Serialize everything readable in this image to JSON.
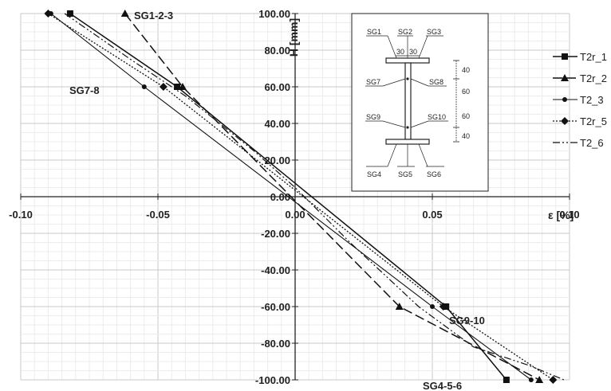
{
  "chart_data": {
    "type": "line",
    "xlabel": "ε [%]",
    "ylabel": "H [mm]",
    "xlim": [
      -0.1,
      0.1
    ],
    "ylim": [
      -100,
      100
    ],
    "x_ticks": [
      "-0.10",
      "-0.05",
      "0.00",
      "0.05",
      "0.10"
    ],
    "y_ticks": [
      "100.00",
      "80.00",
      "60.00",
      "40.00",
      "20.00",
      "0.00",
      "-20.00",
      "-40.00",
      "-60.00",
      "-80.00",
      "-100.00"
    ],
    "grid": true,
    "legend_position": "right",
    "series": [
      {
        "name": "T2r_1",
        "marker": "square",
        "dash": "solid",
        "points": [
          [
            -0.082,
            100
          ],
          [
            -0.043,
            60
          ],
          [
            0.055,
            -60
          ],
          [
            0.077,
            -100
          ]
        ]
      },
      {
        "name": "T2r_2",
        "marker": "triangle",
        "dash": "long-dash",
        "points": [
          [
            -0.062,
            100
          ],
          [
            -0.041,
            60
          ],
          [
            0.038,
            -60
          ],
          [
            0.089,
            -100
          ]
        ]
      },
      {
        "name": "T2_3",
        "marker": "circle",
        "dash": "solid-thin",
        "points": [
          [
            -0.089,
            100
          ],
          [
            -0.055,
            60
          ],
          [
            0.05,
            -60
          ],
          [
            0.086,
            -100
          ]
        ]
      },
      {
        "name": "T2r_5",
        "marker": "diamond",
        "dash": "dotted",
        "points": [
          [
            -0.09,
            100
          ],
          [
            -0.048,
            60
          ],
          [
            0.054,
            -60
          ],
          [
            0.094,
            -100
          ]
        ]
      },
      {
        "name": "T2_6",
        "marker": "none",
        "dash": "dash-dot-dot",
        "points": [
          [
            -0.084,
            100
          ],
          [
            -0.06,
            75
          ],
          [
            -0.04,
            55
          ],
          [
            -0.015,
            25
          ],
          [
            0.0,
            5
          ],
          [
            0.02,
            -25
          ],
          [
            0.045,
            -60
          ],
          [
            0.065,
            -82
          ],
          [
            0.085,
            -92
          ],
          [
            0.098,
            -100
          ]
        ]
      }
    ],
    "annotations": [
      "SG1-2-3",
      "SG7-8",
      "SG9-10",
      "SG4-5-6"
    ],
    "inset": {
      "top_labels": [
        "SG1",
        "SG2",
        "SG3"
      ],
      "flange_dims": [
        "30",
        "30"
      ],
      "web_left": [
        "SG7",
        "SG9"
      ],
      "web_right": [
        "SG8",
        "SG10"
      ],
      "bottom_labels": [
        "SG4",
        "SG5",
        "SG6"
      ],
      "side_dims": [
        "40",
        "60",
        "60",
        "40"
      ]
    }
  }
}
